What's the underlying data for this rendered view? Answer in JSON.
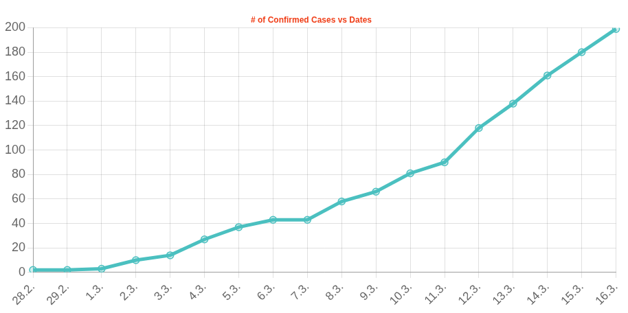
{
  "chart_data": {
    "type": "line",
    "title": "# of Confirmed Cases vs Dates",
    "categories": [
      "28.2.",
      "29.2.",
      "1.3.",
      "2.3.",
      "3.3.",
      "4.3.",
      "5.3.",
      "6.3.",
      "7.3.",
      "8.3.",
      "9.3.",
      "10.3.",
      "11.3.",
      "12.3.",
      "13.3.",
      "14.3.",
      "15.3.",
      "16.3."
    ],
    "values": [
      2,
      2,
      3,
      10,
      14,
      27,
      37,
      43,
      43,
      58,
      66,
      81,
      90,
      118,
      138,
      161,
      180,
      199
    ],
    "color": "#4bc0c0",
    "marker": "circle",
    "ylim": [
      0,
      200
    ],
    "yticks": [
      0,
      20,
      40,
      60,
      80,
      100,
      120,
      140,
      160,
      180,
      200
    ],
    "grid": true
  }
}
